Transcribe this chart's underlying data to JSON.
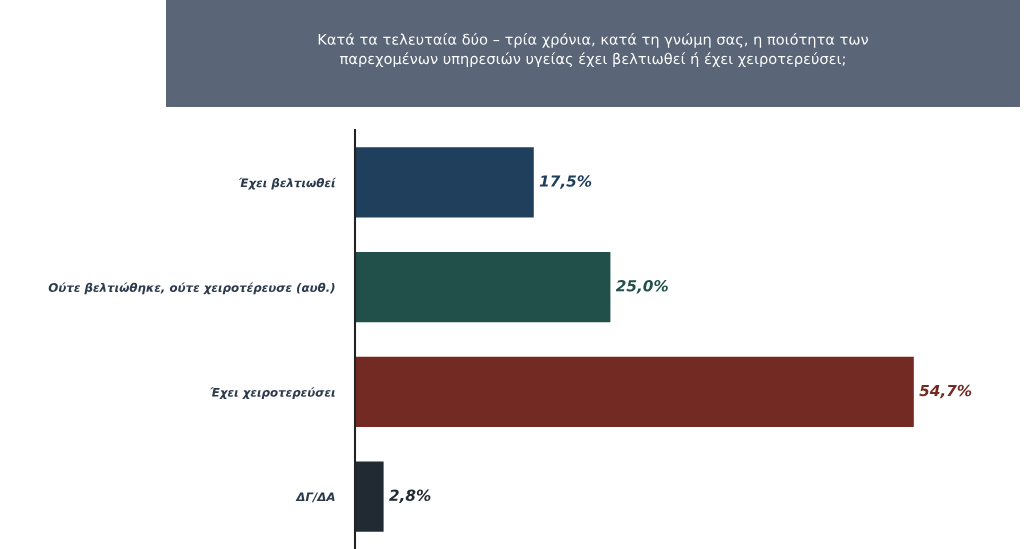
{
  "chart_data": {
    "type": "bar",
    "orientation": "horizontal",
    "title": "Κατά τα τελευταία δύο – τρία χρόνια, κατά τη γνώμη σας, η ποιότητα των\nπαρεχομένων υπηρεσιών υγείας έχει βελτιωθεί ή έχει χειροτερεύσει;",
    "categories": [
      "Έχει βελτιωθεί",
      "Ούτε βελτιώθηκε, ούτε χειροτέρευσε (αυθ.)",
      "Έχει χειροτερεύσει",
      "ΔΓ/ΔΑ"
    ],
    "values": [
      17.5,
      25.0,
      54.7,
      2.8
    ],
    "colors": [
      "#1f3f5c",
      "#214f4a",
      "#722a22",
      "#212a33"
    ],
    "value_labels": [
      "17,5%",
      "25,0%",
      "54,7%",
      "2,8%"
    ],
    "tick_labels": "y",
    "grid": false,
    "legend": false
  }
}
